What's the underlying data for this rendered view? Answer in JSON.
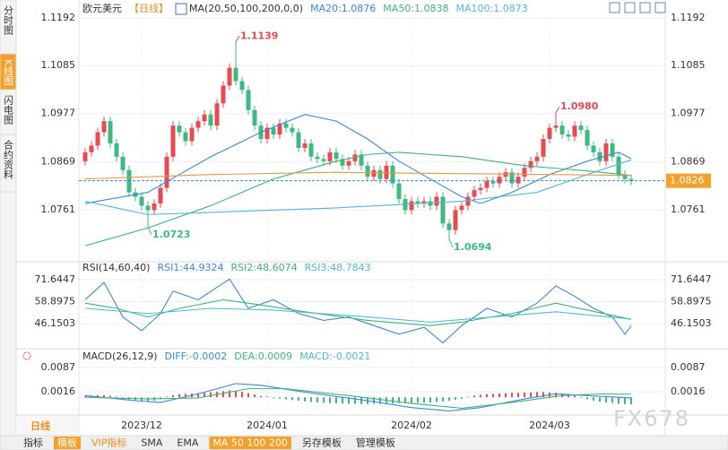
{
  "sidebar": {
    "tabs": [
      "分时图",
      "K线图",
      "闪电图",
      "合约资料"
    ],
    "active": 1,
    "period": "日线"
  },
  "toolbar": {
    "items": [
      "指标",
      "模板",
      "VIP指标",
      "SMA",
      "EMA",
      "MA 50 100 200",
      "另存模板",
      "管理模板"
    ],
    "active": [
      1,
      5
    ],
    "accent": [
      2
    ]
  },
  "watermark": "FX678",
  "chart_data": [
    {
      "type": "candlestick",
      "title": "欧元美元",
      "period_label": "【日线】",
      "indicator": "MA(20,50,100,200,0,0)",
      "categories": [
        null,
        null,
        null,
        null,
        null,
        null,
        null,
        null,
        null,
        "2023/12",
        null,
        null,
        null,
        null,
        null,
        null,
        null,
        null,
        null,
        null,
        null,
        null,
        null,
        null,
        null,
        null,
        null,
        null,
        null,
        "2024/01",
        null,
        null,
        null,
        null,
        null,
        null,
        null,
        null,
        null,
        null,
        null,
        null,
        null,
        null,
        null,
        null,
        null,
        null,
        null,
        null,
        null,
        null,
        "2024/02",
        null,
        null,
        null,
        null,
        null,
        null,
        null,
        null,
        null,
        null,
        null,
        null,
        null,
        null,
        null,
        null,
        null,
        null,
        null,
        null,
        null,
        "2024/03",
        null,
        null,
        null,
        null,
        null,
        null,
        null,
        null,
        null,
        null,
        null,
        null,
        null
      ],
      "open": [
        1.087,
        1.089,
        1.0905,
        1.0935,
        1.096,
        1.091,
        1.088,
        1.085,
        1.08,
        1.079,
        1.077,
        1.076,
        1.0775,
        1.081,
        1.088,
        1.095,
        1.0935,
        1.0915,
        1.0945,
        1.096,
        1.0975,
        1.095,
        1.1,
        1.104,
        1.108,
        1.105,
        1.103,
        1.0985,
        1.095,
        1.092,
        1.0945,
        1.093,
        1.0955,
        1.0945,
        1.0935,
        1.09,
        1.091,
        1.088,
        1.0875,
        1.087,
        1.089,
        1.0875,
        1.086,
        1.087,
        1.0885,
        1.086,
        1.0835,
        1.085,
        1.083,
        1.086,
        1.082,
        1.0785,
        1.076,
        1.078,
        1.0775,
        1.078,
        1.077,
        1.079,
        1.073,
        1.0715,
        1.076,
        1.077,
        1.079,
        1.0805,
        1.081,
        1.0825,
        1.082,
        1.0835,
        1.0845,
        1.082,
        1.0835,
        1.0855,
        1.087,
        1.088,
        1.092,
        1.0945,
        1.095,
        1.093,
        1.0925,
        1.095,
        1.094,
        1.0905,
        1.089,
        1.087,
        1.091,
        1.088,
        1.084,
        1.083
      ],
      "high": [
        1.09,
        1.0915,
        1.0945,
        1.097,
        1.097,
        1.092,
        1.089,
        1.086,
        1.081,
        1.08,
        1.078,
        1.0785,
        1.082,
        1.089,
        1.096,
        1.096,
        1.0945,
        1.0955,
        1.097,
        1.0985,
        1.0985,
        1.101,
        1.105,
        1.109,
        1.1139,
        1.106,
        1.104,
        1.0995,
        1.096,
        1.0955,
        1.0955,
        1.0965,
        1.0965,
        1.0955,
        1.0945,
        1.092,
        1.092,
        1.089,
        1.0885,
        1.09,
        1.09,
        1.0885,
        1.088,
        1.0895,
        1.0895,
        1.087,
        1.086,
        1.086,
        1.087,
        1.087,
        1.083,
        1.0795,
        1.079,
        1.079,
        1.079,
        1.079,
        1.08,
        1.08,
        1.074,
        1.077,
        1.078,
        1.08,
        1.0815,
        1.082,
        1.0835,
        1.0835,
        1.0845,
        1.0855,
        1.0855,
        1.0845,
        1.0865,
        1.088,
        1.089,
        1.093,
        1.0955,
        1.098,
        1.096,
        1.094,
        1.096,
        1.096,
        1.095,
        1.0915,
        1.09,
        1.092,
        1.092,
        1.089,
        1.085,
        1.084
      ],
      "low": [
        1.086,
        1.088,
        1.0895,
        1.0925,
        1.09,
        1.087,
        1.084,
        1.079,
        1.078,
        1.076,
        1.0723,
        1.075,
        1.0765,
        1.08,
        1.087,
        1.0925,
        1.0905,
        1.0905,
        1.0935,
        1.095,
        1.094,
        1.094,
        1.099,
        1.103,
        1.104,
        1.102,
        1.0975,
        1.094,
        1.091,
        1.091,
        1.092,
        1.092,
        1.0935,
        1.0925,
        1.089,
        1.089,
        1.087,
        1.0865,
        1.086,
        1.086,
        1.0865,
        1.085,
        1.085,
        1.086,
        1.085,
        1.0825,
        1.0825,
        1.082,
        1.082,
        1.081,
        1.0775,
        1.075,
        1.075,
        1.0765,
        1.0765,
        1.076,
        1.076,
        1.072,
        1.0694,
        1.0705,
        1.075,
        1.076,
        1.078,
        1.0795,
        1.08,
        1.081,
        1.081,
        1.0825,
        1.081,
        1.081,
        1.0825,
        1.0845,
        1.086,
        1.087,
        1.091,
        1.0935,
        1.092,
        1.0915,
        1.0915,
        1.093,
        1.0895,
        1.088,
        1.086,
        1.086,
        1.087,
        1.083,
        1.082,
        1.0816
      ],
      "close": [
        1.089,
        1.0905,
        1.0935,
        1.096,
        1.091,
        1.088,
        1.085,
        1.08,
        1.079,
        1.077,
        1.076,
        1.0775,
        1.081,
        1.088,
        1.095,
        1.0935,
        1.0915,
        1.0945,
        1.096,
        1.0975,
        1.095,
        1.1,
        1.104,
        1.108,
        1.105,
        1.103,
        1.0985,
        1.095,
        1.092,
        1.0945,
        1.093,
        1.0955,
        1.0945,
        1.0935,
        1.09,
        1.091,
        1.088,
        1.0875,
        1.087,
        1.089,
        1.0875,
        1.086,
        1.087,
        1.0885,
        1.086,
        1.0835,
        1.085,
        1.083,
        1.086,
        1.082,
        1.0785,
        1.076,
        1.078,
        1.0775,
        1.078,
        1.077,
        1.079,
        1.073,
        1.0715,
        1.076,
        1.077,
        1.079,
        1.0805,
        1.081,
        1.0825,
        1.082,
        1.0835,
        1.0845,
        1.082,
        1.0835,
        1.0855,
        1.087,
        1.088,
        1.092,
        1.0945,
        1.095,
        1.093,
        1.0925,
        1.095,
        1.094,
        1.0905,
        1.089,
        1.087,
        1.091,
        1.088,
        1.084,
        1.083,
        1.0826
      ],
      "up_color": "#e84a50",
      "down_color": "#3dba82",
      "ylim": [
        1.0648,
        1.1192
      ],
      "yticks": [
        1.0761,
        1.0869,
        1.0977,
        1.1085,
        1.1192
      ],
      "grid": true,
      "last_price": 1.0826,
      "last_price_color": "#f5a02a",
      "annotations": [
        {
          "x": 24,
          "value": 1.1139,
          "label": "1.1139",
          "color": "#e84a50"
        },
        {
          "x": 10,
          "value": 1.0723,
          "label": "1.0723",
          "color": "#3dba82"
        },
        {
          "x": 58,
          "value": 1.0694,
          "label": "1.0694",
          "color": "#3dba82"
        },
        {
          "x": 75,
          "value": 1.098,
          "label": "1.0980",
          "color": "#e84a50"
        }
      ],
      "series": [
        {
          "label": "MA20:1.0876",
          "color": "#3d86de",
          "x": [
            0,
            10,
            15,
            20,
            28,
            35,
            40,
            45,
            50,
            55,
            60,
            63,
            68,
            74,
            80,
            85,
            87
          ],
          "values": [
            1.0775,
            1.08,
            1.084,
            1.088,
            1.0935,
            1.0975,
            1.096,
            1.092,
            1.087,
            1.083,
            1.079,
            1.0775,
            1.08,
            1.084,
            1.087,
            1.089,
            1.0876
          ]
        },
        {
          "label": "MA50:1.0838",
          "color": "#3fb37a",
          "x": [
            0,
            10,
            20,
            30,
            40,
            45,
            50,
            60,
            70,
            80,
            87
          ],
          "values": [
            1.068,
            1.072,
            1.077,
            1.083,
            1.087,
            1.0885,
            1.089,
            1.088,
            1.086,
            1.0848,
            1.0838
          ]
        },
        {
          "label": "MA100:1.0873",
          "color": "#52b6d8",
          "x": [
            0,
            10,
            20,
            40,
            60,
            72,
            80,
            87
          ],
          "values": [
            1.078,
            1.075,
            1.0755,
            1.0765,
            1.078,
            1.08,
            1.084,
            1.0873
          ]
        },
        {
          "color": "#e39a45",
          "x": [
            0,
            20,
            40,
            60,
            87
          ],
          "values": [
            1.083,
            1.084,
            1.0845,
            1.0842,
            1.0838
          ]
        }
      ]
    },
    {
      "type": "line",
      "title": "RSI(14,60,40)",
      "ylim": [
        33.66,
        77.89
      ],
      "yticks": [
        46.1503,
        58.8975,
        71.6447
      ],
      "grid": true,
      "series": [
        {
          "label": "RSI1:44.9324",
          "color": "#3d86de",
          "x": [
            0,
            3,
            6,
            9,
            12,
            14,
            18,
            23,
            26,
            30,
            34,
            38,
            42,
            46,
            50,
            54,
            57,
            60,
            64,
            68,
            72,
            75,
            78,
            81,
            84,
            86,
            87
          ],
          "values": [
            60,
            70,
            50,
            42,
            52,
            65,
            60,
            72,
            55,
            60,
            52,
            48,
            50,
            45,
            40,
            44,
            35,
            45,
            55,
            50,
            58,
            68,
            62,
            55,
            50,
            40,
            44.9324
          ]
        },
        {
          "label": "RSI2:48.6074",
          "color": "#3fb37a",
          "x": [
            0,
            5,
            10,
            15,
            22,
            28,
            35,
            45,
            55,
            60,
            68,
            75,
            80,
            87
          ],
          "values": [
            58,
            55,
            50,
            55,
            60,
            57,
            53,
            48,
            45,
            47,
            52,
            58,
            54,
            48.6074
          ]
        },
        {
          "label": "RSI3:48.7843",
          "color": "#52b6d8",
          "x": [
            0,
            10,
            20,
            30,
            45,
            55,
            65,
            75,
            87
          ],
          "values": [
            55,
            52,
            55,
            54,
            50,
            47,
            50,
            53,
            48.7843
          ]
        }
      ]
    },
    {
      "type": "macd",
      "title": "MACD(26,12,9)",
      "ylim": [
        -0.0044,
        0.0113
      ],
      "yticks": [
        0.0016,
        0.0087
      ],
      "grid": true,
      "series": [
        {
          "label": "DIFF:-0.0002",
          "color": "#3d86de",
          "x": [
            0,
            8,
            12,
            18,
            24,
            28,
            35,
            45,
            52,
            58,
            63,
            70,
            75,
            80,
            87
          ],
          "values": [
            0.0005,
            -0.001,
            -0.0015,
            0.001,
            0.004,
            0.0035,
            0.0015,
            -0.001,
            -0.003,
            -0.004,
            -0.003,
            -0.0005,
            0.001,
            0.0005,
            -0.0002
          ]
        },
        {
          "label": "DEA:0.0009",
          "color": "#3fb37a",
          "x": [
            0,
            10,
            18,
            26,
            32,
            42,
            52,
            60,
            68,
            76,
            82,
            87
          ],
          "values": [
            0,
            -0.0005,
            -0.0002,
            0.0025,
            0.0025,
            0.0005,
            -0.0018,
            -0.0032,
            -0.0015,
            0.0005,
            0.001,
            0.0009
          ]
        }
      ],
      "histogram": {
        "label": "MACD:-0.0021",
        "label_color": "#52b6d8",
        "up_color": "#e84a50",
        "down_color": "#3dba82",
        "values": [
          0.0004,
          0.0005,
          0.0006,
          0.0006,
          0.0004,
          0.0002,
          -0.0003,
          -0.0006,
          -0.0009,
          -0.0011,
          -0.0012,
          -0.001,
          -0.0006,
          0.0002,
          0.0006,
          0.0009,
          0.001,
          0.0011,
          0.0012,
          0.0013,
          0.0014,
          0.0016,
          0.0018,
          0.002,
          0.0019,
          0.0016,
          0.0012,
          0.0008,
          0.0004,
          0.0002,
          -0.0002,
          -0.0004,
          -0.0006,
          -0.0008,
          -0.001,
          -0.0012,
          -0.0014,
          -0.0015,
          -0.0016,
          -0.0017,
          -0.0018,
          -0.0018,
          -0.0019,
          -0.0019,
          -0.002,
          -0.002,
          -0.0019,
          -0.0019,
          -0.0018,
          -0.0018,
          -0.0017,
          -0.0017,
          -0.0016,
          -0.0016,
          -0.0016,
          -0.0015,
          -0.0014,
          -0.0012,
          -0.001,
          -0.0007,
          -0.0004,
          0.0002,
          0.0005,
          0.0007,
          0.0009,
          0.001,
          0.0011,
          0.0012,
          0.0013,
          0.0013,
          0.0014,
          0.0014,
          0.0015,
          0.0015,
          0.0014,
          0.0013,
          0.0011,
          0.0008,
          0.0005,
          -0.0002,
          -0.0006,
          -0.001,
          -0.0013,
          -0.0015,
          -0.0017,
          -0.0019,
          -0.002,
          -0.0021
        ]
      }
    }
  ]
}
